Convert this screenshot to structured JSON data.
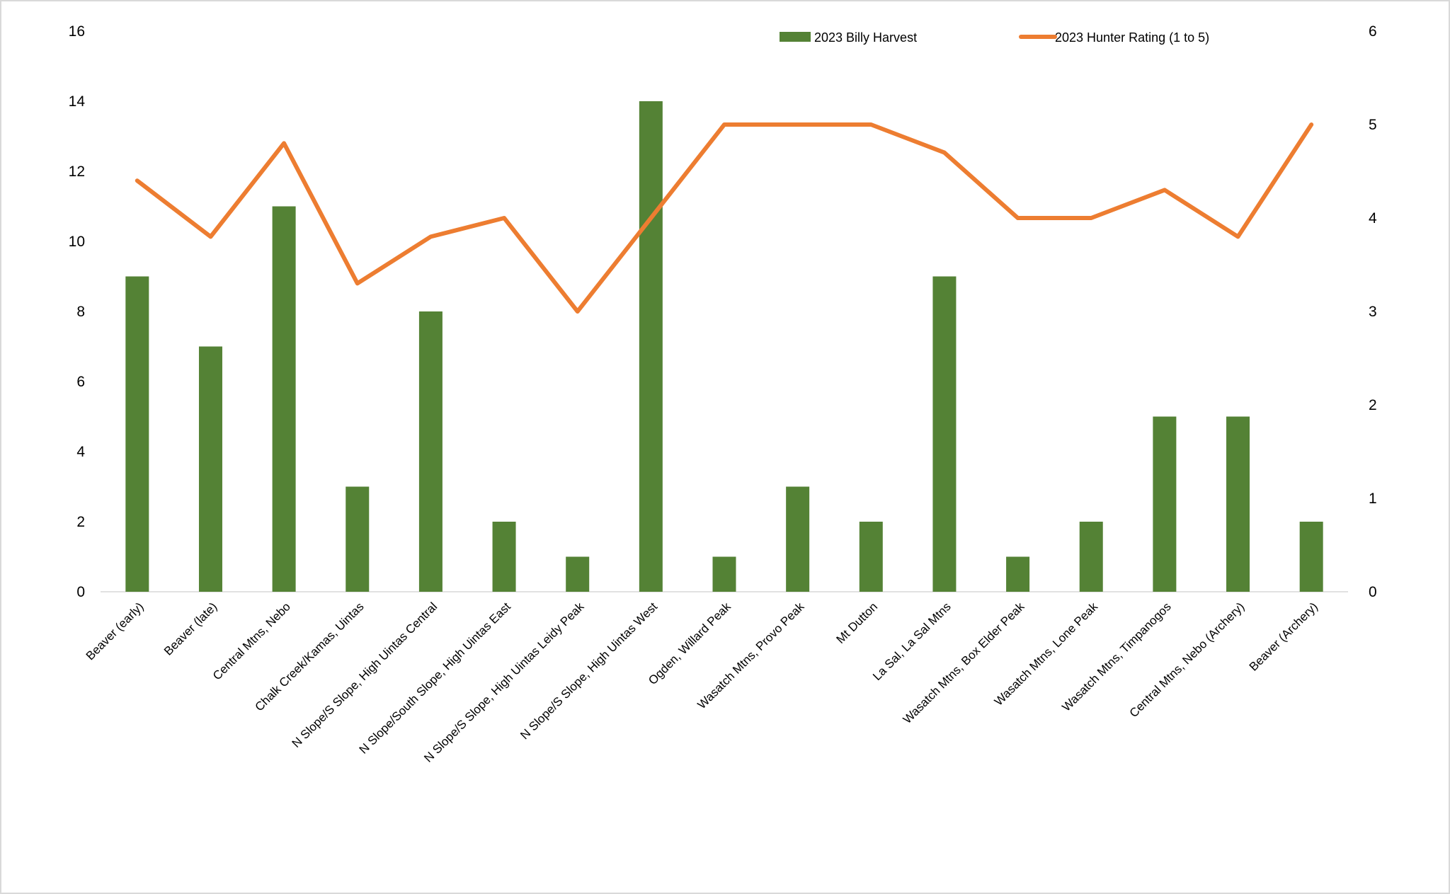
{
  "chart_data": {
    "type": "bar",
    "categories": [
      "Beaver (early)",
      "Beaver (late)",
      "Central Mtns, Nebo",
      "Chalk Creek/Kamas, Uintas",
      "N Slope/S Slope, High Uintas Central",
      "N Slope/South Slope, High Uintas East",
      "N Slope/S Slope, High Uintas Leidy Peak",
      "N Slope/S Slope, High Uintas West",
      "Ogden, Willard Peak",
      "Wasatch Mtns, Provo Peak",
      "Mt Dutton",
      "La Sal, La Sal Mtns",
      "Wasatch Mtns, Box Elder Peak",
      "Wasatch Mtns, Lone Peak",
      "Wasatch Mtns, Timpanogos",
      "Central Mtns, Nebo (Archery)",
      "Beaver (Archery)"
    ],
    "series": [
      {
        "name": "2023 Billy Harvest",
        "type": "bar",
        "axis": "left",
        "color": "#548235",
        "values": [
          9,
          7,
          11,
          3,
          8,
          2,
          1,
          14,
          1,
          3,
          2,
          9,
          1,
          2,
          5,
          5,
          2
        ]
      },
      {
        "name": "2023 Hunter Rating (1 to 5)",
        "type": "line",
        "axis": "right",
        "color": "#ED7D31",
        "values": [
          4.4,
          3.8,
          4.8,
          3.3,
          3.8,
          4.0,
          3.0,
          4.0,
          5.0,
          5.0,
          5.0,
          4.7,
          4.0,
          4.0,
          4.3,
          3.8,
          5.0
        ]
      }
    ],
    "ylim": [
      0,
      16
    ],
    "yticks": [
      0,
      2,
      4,
      6,
      8,
      10,
      12,
      14,
      16
    ],
    "y2lim": [
      0,
      6
    ],
    "y2ticks": [
      0,
      1,
      2,
      3,
      4,
      5,
      6
    ],
    "grid": false,
    "legend_position": "top-right"
  }
}
